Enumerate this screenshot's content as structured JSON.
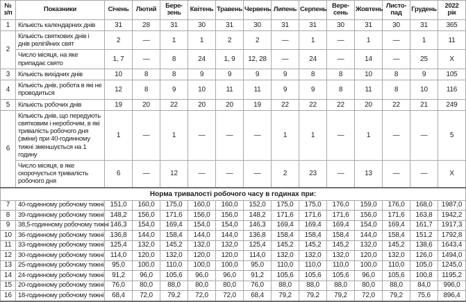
{
  "table": {
    "columns": [
      "№\nз/п",
      "Показники",
      "Січень",
      "Лютий",
      "Бере-\nзень",
      "Квітень",
      "Травень",
      "Червень",
      "Липень",
      "Серпень",
      "Вере-\nсень",
      "Жовтень",
      "Листо-\nпад",
      "Грудень",
      "2022\nрік"
    ],
    "upper_rows": [
      {
        "num": "1",
        "label": "Кількість календарних днів",
        "values": [
          "31",
          "28",
          "31",
          "30",
          "31",
          "30",
          "31",
          "31",
          "30",
          "31",
          "30",
          "31",
          "365"
        ]
      },
      {
        "num": "2",
        "rowspan": 2,
        "label": "Кількість святкових днів і днів релігійних свят",
        "values": [
          "2",
          "—",
          "1",
          "1",
          "2",
          "2",
          "—",
          "1",
          "—",
          "1",
          "—",
          "1",
          "11"
        ]
      },
      {
        "num": null,
        "label": "Число місяця, на яке припадає свято",
        "values": [
          "1, 7",
          "—",
          "8",
          "24",
          "1, 9",
          "12, 28",
          "—",
          "24",
          "—",
          "14",
          "—",
          "25",
          "X"
        ]
      },
      {
        "num": "3",
        "label": "Кількість вихідних днів",
        "values": [
          "10",
          "8",
          "8",
          "9",
          "9",
          "9",
          "9",
          "8",
          "8",
          "10",
          "8",
          "9",
          "105"
        ]
      },
      {
        "num": "4",
        "label": "Кількість днів, робота в які не проводиться",
        "values": [
          "12",
          "8",
          "9",
          "10",
          "11",
          "11",
          "9",
          "9",
          "8",
          "11",
          "8",
          "10",
          "116"
        ]
      },
      {
        "num": "5",
        "label": "Кількість робочих днів",
        "values": [
          "19",
          "20",
          "22",
          "20",
          "20",
          "19",
          "22",
          "22",
          "22",
          "20",
          "22",
          "21",
          "249"
        ]
      },
      {
        "num": "6",
        "rowspan": 2,
        "label": "Кількість днів, що передують святковим і неробочим, в які тривалість робочого дня (зміни) при 40-годинному тижні зменшується на 1 годину",
        "values": [
          "1",
          "—",
          "1",
          "—",
          "—",
          "—",
          "1",
          "1",
          "—",
          "1",
          "—",
          "—",
          "5"
        ]
      },
      {
        "num": null,
        "label": "Число місяця, в яке скорочується тривалість робочого дня",
        "values": [
          "6",
          "—",
          "12",
          "—",
          "—",
          "—",
          "2",
          "23",
          "—",
          "13",
          "—",
          "—",
          "X"
        ]
      }
    ],
    "section_title": "Норма тривалості робочого часу в годинах при:",
    "lower_rows": [
      {
        "num": "7",
        "label": "40-годинному робочому тижні",
        "values": [
          "151,0",
          "160,0",
          "175,0",
          "160,0",
          "160,0",
          "152,0",
          "175,0",
          "175,0",
          "176,0",
          "159,0",
          "176,0",
          "168,0",
          "1987,0"
        ]
      },
      {
        "num": "8",
        "label": "39-годинному робочому тижні",
        "values": [
          "148,2",
          "156,0",
          "171,6",
          "156,0",
          "156,0",
          "148,2",
          "171,6",
          "171,6",
          "171,6",
          "156,0",
          "171,6",
          "163,8",
          "1942,2"
        ]
      },
      {
        "num": "9",
        "label": "38,5-годинному робочому тижні",
        "values": [
          "146,3",
          "154,0",
          "169,4",
          "154,0",
          "154,0",
          "146,3",
          "169,4",
          "169,4",
          "169,4",
          "154,0",
          "169,4",
          "161,7",
          "1917,3"
        ]
      },
      {
        "num": "10",
        "label": "36-годинному робочому тижні",
        "values": [
          "136,8",
          "144,0",
          "158,4",
          "144,0",
          "144,0",
          "136,8",
          "158,4",
          "158,4",
          "158,4",
          "144,0",
          "158,4",
          "151,2",
          "1792,8"
        ]
      },
      {
        "num": "11",
        "label": "33-годинному робочому тижні",
        "values": [
          "125,4",
          "132,0",
          "145,2",
          "132,0",
          "132,0",
          "125,4",
          "145,2",
          "145,2",
          "145,2",
          "132,0",
          "145,2",
          "138,6",
          "1643,4"
        ]
      },
      {
        "num": "12",
        "label": "30-годинному робочому тижні",
        "values": [
          "114,0",
          "120,0",
          "132,0",
          "120,0",
          "120,0",
          "114,0",
          "132,0",
          "132,0",
          "132,0",
          "120,0",
          "132,0",
          "126,0",
          "1494,0"
        ]
      },
      {
        "num": "13",
        "label": "25-годинному робочому тижні",
        "values": [
          "95,0",
          "100,0",
          "110,0",
          "100,0",
          "100,0",
          "95,0",
          "110,0",
          "110,0",
          "110,0",
          "100,0",
          "110,0",
          "105,0",
          "1245,0"
        ]
      },
      {
        "num": "14",
        "label": "24-годинному робочому тижні",
        "values": [
          "91,2",
          "96,0",
          "105,6",
          "96,0",
          "96,0",
          "91,2",
          "105,6",
          "105,6",
          "105,6",
          "96,0",
          "105,6",
          "100,8",
          "1195,2"
        ]
      },
      {
        "num": "15",
        "label": "20-годинному робочому тижні",
        "values": [
          "76,0",
          "80,0",
          "88,0",
          "80,0",
          "80,0",
          "76,0",
          "88,0",
          "88,0",
          "88,0",
          "80,0",
          "88,0",
          "84,0",
          "996,0"
        ]
      },
      {
        "num": "16",
        "label": "18-годинному робочому тижні",
        "values": [
          "68,4",
          "72,0",
          "79,2",
          "72,0",
          "72,0",
          "68,4",
          "79,2",
          "79,2",
          "79,2",
          "72,0",
          "79,2",
          "75,6",
          "896,4"
        ]
      }
    ]
  }
}
